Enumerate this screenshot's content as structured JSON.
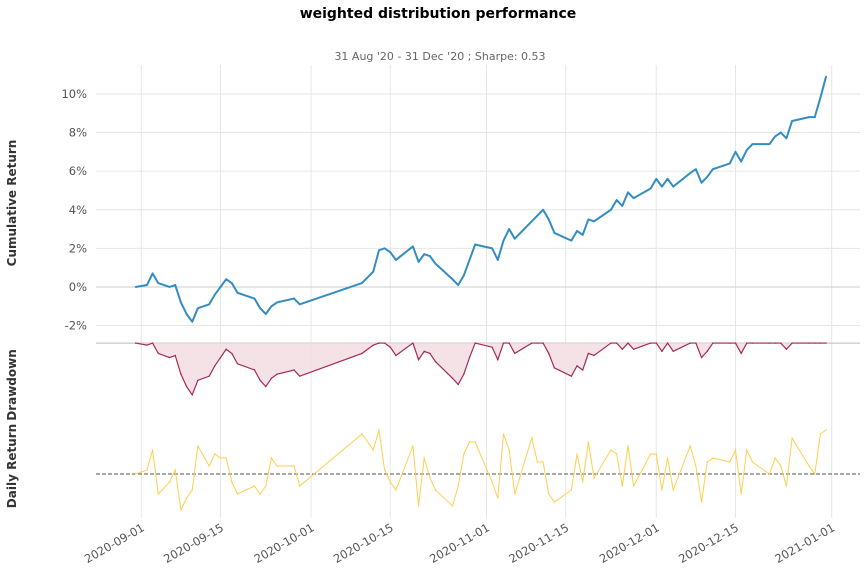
{
  "chart_data": {
    "type": "line",
    "title": "weighted distribution performance",
    "subtitle": "31 Aug '20 - 31 Dec '20 ;  Sharpe: 0.53",
    "panels": [
      {
        "id": "cumulative",
        "ylabel": "Cumulative Return",
        "type": "line",
        "color": "#348dc1",
        "ylim": [
          -2.8,
          11.5
        ],
        "yticks": [
          -2,
          0,
          2,
          4,
          6,
          8,
          10
        ],
        "ytick_labels": [
          "-2%",
          "0%",
          "2%",
          "4%",
          "6%",
          "8%",
          "10%"
        ],
        "points": [
          [
            "2020-08-31",
            0.0
          ],
          [
            "2020-09-02",
            0.1
          ],
          [
            "2020-09-03",
            0.7
          ],
          [
            "2020-09-04",
            0.2
          ],
          [
            "2020-09-06",
            0.0
          ],
          [
            "2020-09-07",
            0.1
          ],
          [
            "2020-09-08",
            -0.8
          ],
          [
            "2020-09-09",
            -1.4
          ],
          [
            "2020-09-10",
            -1.8
          ],
          [
            "2020-09-11",
            -1.1
          ],
          [
            "2020-09-13",
            -0.9
          ],
          [
            "2020-09-14",
            -0.4
          ],
          [
            "2020-09-15",
            0.0
          ],
          [
            "2020-09-16",
            0.4
          ],
          [
            "2020-09-17",
            0.2
          ],
          [
            "2020-09-18",
            -0.3
          ],
          [
            "2020-09-21",
            -0.6
          ],
          [
            "2020-09-22",
            -1.1
          ],
          [
            "2020-09-23",
            -1.4
          ],
          [
            "2020-09-24",
            -1.0
          ],
          [
            "2020-09-25",
            -0.8
          ],
          [
            "2020-09-28",
            -0.6
          ],
          [
            "2020-09-29",
            -0.9
          ],
          [
            "2020-10-10",
            0.2
          ],
          [
            "2020-10-12",
            0.8
          ],
          [
            "2020-10-13",
            1.9
          ],
          [
            "2020-10-14",
            2.0
          ],
          [
            "2020-10-15",
            1.8
          ],
          [
            "2020-10-16",
            1.4
          ],
          [
            "2020-10-19",
            2.1
          ],
          [
            "2020-10-20",
            1.3
          ],
          [
            "2020-10-21",
            1.7
          ],
          [
            "2020-10-22",
            1.6
          ],
          [
            "2020-10-23",
            1.2
          ],
          [
            "2020-10-26",
            0.4
          ],
          [
            "2020-10-27",
            0.1
          ],
          [
            "2020-10-28",
            0.6
          ],
          [
            "2020-10-29",
            1.4
          ],
          [
            "2020-10-30",
            2.2
          ],
          [
            "2020-11-02",
            2.0
          ],
          [
            "2020-11-03",
            1.4
          ],
          [
            "2020-11-04",
            2.4
          ],
          [
            "2020-11-05",
            3.0
          ],
          [
            "2020-11-06",
            2.5
          ],
          [
            "2020-11-09",
            3.4
          ],
          [
            "2020-11-10",
            3.7
          ],
          [
            "2020-11-11",
            4.0
          ],
          [
            "2020-11-12",
            3.5
          ],
          [
            "2020-11-13",
            2.8
          ],
          [
            "2020-11-16",
            2.4
          ],
          [
            "2020-11-17",
            2.9
          ],
          [
            "2020-11-18",
            2.7
          ],
          [
            "2020-11-19",
            3.5
          ],
          [
            "2020-11-20",
            3.4
          ],
          [
            "2020-11-23",
            4.0
          ],
          [
            "2020-11-24",
            4.5
          ],
          [
            "2020-11-25",
            4.2
          ],
          [
            "2020-11-26",
            4.9
          ],
          [
            "2020-11-27",
            4.6
          ],
          [
            "2020-11-30",
            5.1
          ],
          [
            "2020-12-01",
            5.6
          ],
          [
            "2020-12-02",
            5.2
          ],
          [
            "2020-12-03",
            5.6
          ],
          [
            "2020-12-04",
            5.2
          ],
          [
            "2020-12-07",
            5.9
          ],
          [
            "2020-12-08",
            6.1
          ],
          [
            "2020-12-09",
            5.4
          ],
          [
            "2020-12-10",
            5.7
          ],
          [
            "2020-12-11",
            6.1
          ],
          [
            "2020-12-14",
            6.4
          ],
          [
            "2020-12-15",
            7.0
          ],
          [
            "2020-12-16",
            6.5
          ],
          [
            "2020-12-17",
            7.1
          ],
          [
            "2020-12-18",
            7.4
          ],
          [
            "2020-12-21",
            7.4
          ],
          [
            "2020-12-22",
            7.8
          ],
          [
            "2020-12-23",
            8.0
          ],
          [
            "2020-12-24",
            7.7
          ],
          [
            "2020-12-25",
            8.6
          ],
          [
            "2020-12-28",
            8.8
          ],
          [
            "2020-12-29",
            8.8
          ],
          [
            "2020-12-30",
            9.8
          ],
          [
            "2020-12-31",
            10.9
          ]
        ]
      },
      {
        "id": "drawdown",
        "ylabel": "Drawdown",
        "type": "area",
        "color": "#a52a56",
        "fill_color": "#f2dde3",
        "ylim": [
          -4.2,
          0.1
        ],
        "points": [
          [
            "2020-08-31",
            0.0
          ],
          [
            "2020-09-02",
            -0.1
          ],
          [
            "2020-09-03",
            0.0
          ],
          [
            "2020-09-04",
            -0.5
          ],
          [
            "2020-09-06",
            -0.7
          ],
          [
            "2020-09-07",
            -0.6
          ],
          [
            "2020-09-08",
            -1.5
          ],
          [
            "2020-09-09",
            -2.1
          ],
          [
            "2020-09-10",
            -2.5
          ],
          [
            "2020-09-11",
            -1.8
          ],
          [
            "2020-09-13",
            -1.6
          ],
          [
            "2020-09-14",
            -1.1
          ],
          [
            "2020-09-15",
            -0.7
          ],
          [
            "2020-09-16",
            -0.3
          ],
          [
            "2020-09-17",
            -0.5
          ],
          [
            "2020-09-18",
            -1.0
          ],
          [
            "2020-09-21",
            -1.3
          ],
          [
            "2020-09-22",
            -1.8
          ],
          [
            "2020-09-23",
            -2.1
          ],
          [
            "2020-09-24",
            -1.7
          ],
          [
            "2020-09-25",
            -1.5
          ],
          [
            "2020-09-28",
            -1.3
          ],
          [
            "2020-09-29",
            -1.6
          ],
          [
            "2020-10-10",
            -0.5
          ],
          [
            "2020-10-12",
            -0.1
          ],
          [
            "2020-10-13",
            0.0
          ],
          [
            "2020-10-14",
            0.0
          ],
          [
            "2020-10-15",
            -0.2
          ],
          [
            "2020-10-16",
            -0.6
          ],
          [
            "2020-10-19",
            0.0
          ],
          [
            "2020-10-20",
            -0.8
          ],
          [
            "2020-10-21",
            -0.4
          ],
          [
            "2020-10-22",
            -0.5
          ],
          [
            "2020-10-23",
            -0.9
          ],
          [
            "2020-10-26",
            -1.7
          ],
          [
            "2020-10-27",
            -2.0
          ],
          [
            "2020-10-28",
            -1.5
          ],
          [
            "2020-10-29",
            -0.7
          ],
          [
            "2020-10-30",
            0.0
          ],
          [
            "2020-11-02",
            -0.2
          ],
          [
            "2020-11-03",
            -0.8
          ],
          [
            "2020-11-04",
            0.0
          ],
          [
            "2020-11-05",
            0.0
          ],
          [
            "2020-11-06",
            -0.5
          ],
          [
            "2020-11-09",
            0.0
          ],
          [
            "2020-11-10",
            0.0
          ],
          [
            "2020-11-11",
            0.0
          ],
          [
            "2020-11-12",
            -0.5
          ],
          [
            "2020-11-13",
            -1.2
          ],
          [
            "2020-11-16",
            -1.6
          ],
          [
            "2020-11-17",
            -1.1
          ],
          [
            "2020-11-18",
            -1.3
          ],
          [
            "2020-11-19",
            -0.5
          ],
          [
            "2020-11-20",
            -0.6
          ],
          [
            "2020-11-23",
            0.0
          ],
          [
            "2020-11-24",
            0.0
          ],
          [
            "2020-11-25",
            -0.3
          ],
          [
            "2020-11-26",
            0.0
          ],
          [
            "2020-11-27",
            -0.3
          ],
          [
            "2020-11-30",
            0.0
          ],
          [
            "2020-12-01",
            0.0
          ],
          [
            "2020-12-02",
            -0.4
          ],
          [
            "2020-12-03",
            0.0
          ],
          [
            "2020-12-04",
            -0.4
          ],
          [
            "2020-12-07",
            0.0
          ],
          [
            "2020-12-08",
            0.0
          ],
          [
            "2020-12-09",
            -0.7
          ],
          [
            "2020-12-10",
            -0.4
          ],
          [
            "2020-12-11",
            0.0
          ],
          [
            "2020-12-14",
            0.0
          ],
          [
            "2020-12-15",
            0.0
          ],
          [
            "2020-12-16",
            -0.5
          ],
          [
            "2020-12-17",
            0.0
          ],
          [
            "2020-12-18",
            0.0
          ],
          [
            "2020-12-21",
            0.0
          ],
          [
            "2020-12-22",
            0.0
          ],
          [
            "2020-12-23",
            0.0
          ],
          [
            "2020-12-24",
            -0.3
          ],
          [
            "2020-12-25",
            0.0
          ],
          [
            "2020-12-28",
            0.0
          ],
          [
            "2020-12-29",
            0.0
          ],
          [
            "2020-12-30",
            0.0
          ],
          [
            "2020-12-31",
            0.0
          ]
        ]
      },
      {
        "id": "daily",
        "ylabel": "Daily Return",
        "type": "line",
        "color": "#fecf4f",
        "baseline_color": "#555555",
        "ylim": [
          -1.1,
          1.1
        ],
        "points": [
          [
            "2020-08-31",
            0.0
          ],
          [
            "2020-09-02",
            0.1
          ],
          [
            "2020-09-03",
            0.6
          ],
          [
            "2020-09-04",
            -0.5
          ],
          [
            "2020-09-06",
            -0.2
          ],
          [
            "2020-09-07",
            0.1
          ],
          [
            "2020-09-08",
            -0.9
          ],
          [
            "2020-09-09",
            -0.6
          ],
          [
            "2020-09-10",
            -0.4
          ],
          [
            "2020-09-11",
            0.7
          ],
          [
            "2020-09-13",
            0.2
          ],
          [
            "2020-09-14",
            0.5
          ],
          [
            "2020-09-15",
            0.4
          ],
          [
            "2020-09-16",
            0.4
          ],
          [
            "2020-09-17",
            -0.2
          ],
          [
            "2020-09-18",
            -0.5
          ],
          [
            "2020-09-21",
            -0.3
          ],
          [
            "2020-09-22",
            -0.5
          ],
          [
            "2020-09-23",
            -0.3
          ],
          [
            "2020-09-24",
            0.4
          ],
          [
            "2020-09-25",
            0.2
          ],
          [
            "2020-09-28",
            0.2
          ],
          [
            "2020-09-29",
            -0.3
          ],
          [
            "2020-10-10",
            1.0
          ],
          [
            "2020-10-12",
            0.6
          ],
          [
            "2020-10-13",
            1.1
          ],
          [
            "2020-10-14",
            0.1
          ],
          [
            "2020-10-15",
            -0.2
          ],
          [
            "2020-10-16",
            -0.4
          ],
          [
            "2020-10-19",
            0.7
          ],
          [
            "2020-10-20",
            -0.8
          ],
          [
            "2020-10-21",
            0.4
          ],
          [
            "2020-10-22",
            -0.1
          ],
          [
            "2020-10-23",
            -0.4
          ],
          [
            "2020-10-26",
            -0.8
          ],
          [
            "2020-10-27",
            -0.3
          ],
          [
            "2020-10-28",
            0.5
          ],
          [
            "2020-10-29",
            0.8
          ],
          [
            "2020-10-30",
            0.8
          ],
          [
            "2020-11-02",
            -0.2
          ],
          [
            "2020-11-03",
            -0.6
          ],
          [
            "2020-11-04",
            1.0
          ],
          [
            "2020-11-05",
            0.6
          ],
          [
            "2020-11-06",
            -0.5
          ],
          [
            "2020-11-09",
            0.9
          ],
          [
            "2020-11-10",
            0.3
          ],
          [
            "2020-11-11",
            0.3
          ],
          [
            "2020-11-12",
            -0.5
          ],
          [
            "2020-11-13",
            -0.7
          ],
          [
            "2020-11-16",
            -0.4
          ],
          [
            "2020-11-17",
            0.5
          ],
          [
            "2020-11-18",
            -0.2
          ],
          [
            "2020-11-19",
            0.8
          ],
          [
            "2020-11-20",
            -0.1
          ],
          [
            "2020-11-23",
            0.6
          ],
          [
            "2020-11-24",
            0.5
          ],
          [
            "2020-11-25",
            -0.3
          ],
          [
            "2020-11-26",
            0.7
          ],
          [
            "2020-11-27",
            -0.3
          ],
          [
            "2020-11-30",
            0.5
          ],
          [
            "2020-12-01",
            0.5
          ],
          [
            "2020-12-02",
            -0.4
          ],
          [
            "2020-12-03",
            0.4
          ],
          [
            "2020-12-04",
            -0.4
          ],
          [
            "2020-12-07",
            0.7
          ],
          [
            "2020-12-08",
            0.2
          ],
          [
            "2020-12-09",
            -0.7
          ],
          [
            "2020-12-10",
            0.3
          ],
          [
            "2020-12-11",
            0.4
          ],
          [
            "2020-12-14",
            0.3
          ],
          [
            "2020-12-15",
            0.6
          ],
          [
            "2020-12-16",
            -0.5
          ],
          [
            "2020-12-17",
            0.6
          ],
          [
            "2020-12-18",
            0.3
          ],
          [
            "2020-12-21",
            0.0
          ],
          [
            "2020-12-22",
            0.4
          ],
          [
            "2020-12-23",
            0.2
          ],
          [
            "2020-12-24",
            -0.3
          ],
          [
            "2020-12-25",
            0.9
          ],
          [
            "2020-12-28",
            0.2
          ],
          [
            "2020-12-29",
            0.0
          ],
          [
            "2020-12-30",
            1.0
          ],
          [
            "2020-12-31",
            1.1
          ]
        ]
      }
    ],
    "x_range": [
      "2020-08-24",
      "2021-01-06"
    ],
    "xticks": [
      "2020-09-01",
      "2020-09-15",
      "2020-10-01",
      "2020-10-15",
      "2020-11-01",
      "2020-11-15",
      "2020-12-01",
      "2020-12-15",
      "2021-01-01"
    ],
    "xtick_labels": [
      "2020-09-01",
      "2020-09-15",
      "2020-10-01",
      "2020-10-15",
      "2020-11-01",
      "2020-11-15",
      "2020-12-01",
      "2020-12-15",
      "2021-01-01"
    ],
    "grid": true
  }
}
